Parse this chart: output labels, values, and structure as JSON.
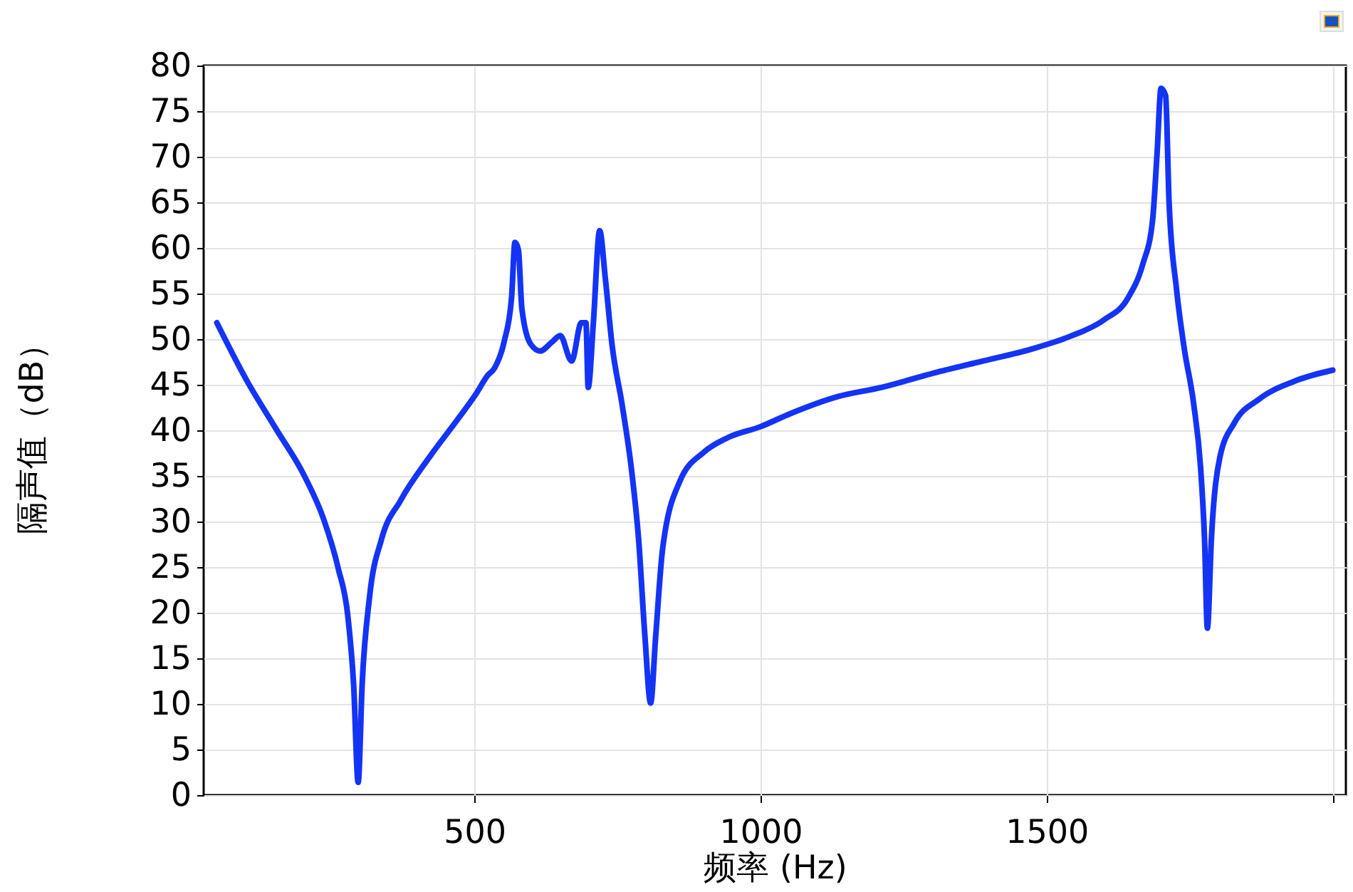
{
  "chart_data": {
    "type": "line",
    "xlabel": "频率 (Hz)",
    "ylabel": "隔声值（dB）",
    "x": [
      50,
      102,
      153,
      203,
      237,
      262,
      279,
      289,
      297,
      304,
      317,
      338,
      371,
      422,
      472,
      502,
      523,
      535,
      552,
      565,
      571,
      577,
      583,
      598,
      615,
      636,
      650,
      670,
      687,
      695,
      699,
      708,
      719,
      729,
      741,
      758,
      775,
      787,
      798,
      808,
      817,
      829,
      859,
      901,
      943,
      1000,
      1051,
      1135,
      1211,
      1304,
      1389,
      1473,
      1541,
      1600,
      1642,
      1668,
      1685,
      1693,
      1700,
      1708,
      1714,
      1727,
      1740,
      1757,
      1769,
      1776,
      1781,
      1788,
      1803,
      1828,
      1871,
      1938,
      2000
    ],
    "series": [
      {
        "color": "#1434f5",
        "values": [
          51.8,
          45.5,
          40.2,
          35,
          30.2,
          24.9,
          19.6,
          12.2,
          1.4,
          12.2,
          21.8,
          28.1,
          32.3,
          37.1,
          41.3,
          43.9,
          46,
          46.8,
          49.7,
          54.5,
          60.6,
          59.8,
          53.4,
          49.5,
          48.7,
          49.7,
          50.4,
          47.6,
          51.8,
          51.8,
          44.7,
          51.8,
          61.9,
          56.6,
          49.2,
          42.9,
          35.5,
          28.1,
          17.5,
          10.1,
          17.5,
          27,
          34.4,
          37.6,
          39.2,
          40.4,
          41.8,
          43.7,
          44.7,
          46.3,
          47.6,
          48.9,
          50.3,
          52.1,
          54.5,
          58.2,
          62.9,
          70.3,
          77.5,
          76.7,
          65.1,
          55.5,
          49.2,
          42.9,
          36,
          28.1,
          18.3,
          28.1,
          37.1,
          40.8,
          43.4,
          45.5,
          46.6
        ]
      }
    ],
    "xlim": [
      27,
      2023
    ],
    "xticks": [
      500,
      1000,
      1500,
      {
        "value": 2000,
        "label": null
      }
    ],
    "ylim": [
      0,
      80
    ],
    "yticks": [
      0,
      5,
      10,
      15,
      20,
      25,
      30,
      35,
      40,
      45,
      50,
      55,
      60,
      65,
      70,
      75,
      80
    ],
    "grid": true,
    "line_style": "solid",
    "marker": "none"
  }
}
